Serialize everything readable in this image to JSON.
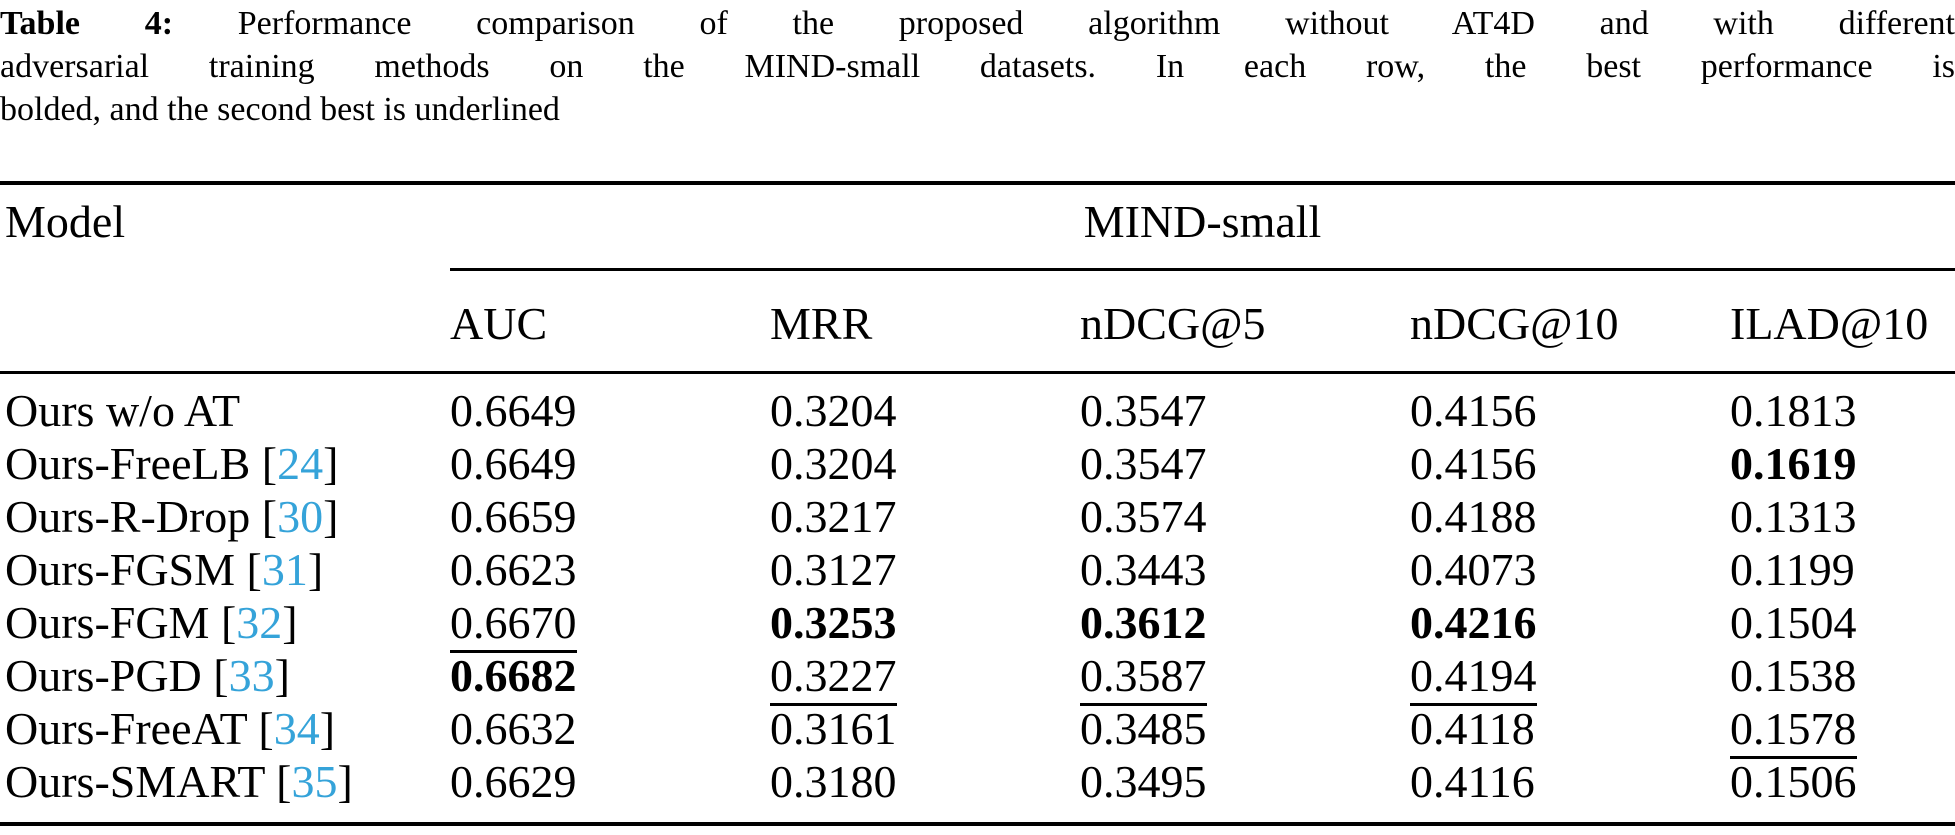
{
  "page": {
    "background": "#ffffff",
    "text_color": "#000000"
  },
  "caption": {
    "label": "Table 4:",
    "line1": "Performance comparison of the proposed algorithm without AT4D and with different",
    "line2": "adversarial training methods on the MIND-small datasets. In each row, the best performance is",
    "line3": "bolded, and the second best is underlined"
  },
  "table": {
    "model_header": "Model",
    "group_header": "MIND-small",
    "columns": [
      "AUC",
      "MRR",
      "nDCG@5",
      "nDCG@10",
      "ILAD@10"
    ],
    "citation_color": "#35a3d9",
    "rows": [
      {
        "model": "Ours w/o AT",
        "cite": null,
        "values": [
          "0.6649",
          "0.3204",
          "0.3547",
          "0.4156",
          "0.1813"
        ],
        "styles": [
          "",
          "",
          "",
          "",
          ""
        ]
      },
      {
        "model": "Ours-FreeLB",
        "cite": "24",
        "values": [
          "0.6649",
          "0.3204",
          "0.3547",
          "0.4156",
          "0.1619"
        ],
        "styles": [
          "",
          "",
          "",
          "",
          "bold"
        ]
      },
      {
        "model": "Ours-R-Drop",
        "cite": "30",
        "values": [
          "0.6659",
          "0.3217",
          "0.3574",
          "0.4188",
          "0.1313"
        ],
        "styles": [
          "",
          "",
          "",
          "",
          ""
        ]
      },
      {
        "model": "Ours-FGSM",
        "cite": "31",
        "values": [
          "0.6623",
          "0.3127",
          "0.3443",
          "0.4073",
          "0.1199"
        ],
        "styles": [
          "",
          "",
          "",
          "",
          ""
        ]
      },
      {
        "model": "Ours-FGM",
        "cite": "32",
        "values": [
          "0.6670",
          "0.3253",
          "0.3612",
          "0.4216",
          "0.1504"
        ],
        "styles": [
          "underline",
          "bold",
          "bold",
          "bold",
          ""
        ]
      },
      {
        "model": "Ours-PGD",
        "cite": "33",
        "values": [
          "0.6682",
          "0.3227",
          "0.3587",
          "0.4194",
          "0.1538"
        ],
        "styles": [
          "bold",
          "underline",
          "underline",
          "underline",
          ""
        ]
      },
      {
        "model": "Ours-FreeAT",
        "cite": "34",
        "values": [
          "0.6632",
          "0.3161",
          "0.3485",
          "0.4118",
          "0.1578"
        ],
        "styles": [
          "",
          "",
          "",
          "",
          "underline"
        ]
      },
      {
        "model": "Ours-SMART",
        "cite": "35",
        "values": [
          "0.6629",
          "0.3180",
          "0.3495",
          "0.4116",
          "0.1506"
        ],
        "styles": [
          "",
          "",
          "",
          "",
          ""
        ]
      }
    ]
  }
}
